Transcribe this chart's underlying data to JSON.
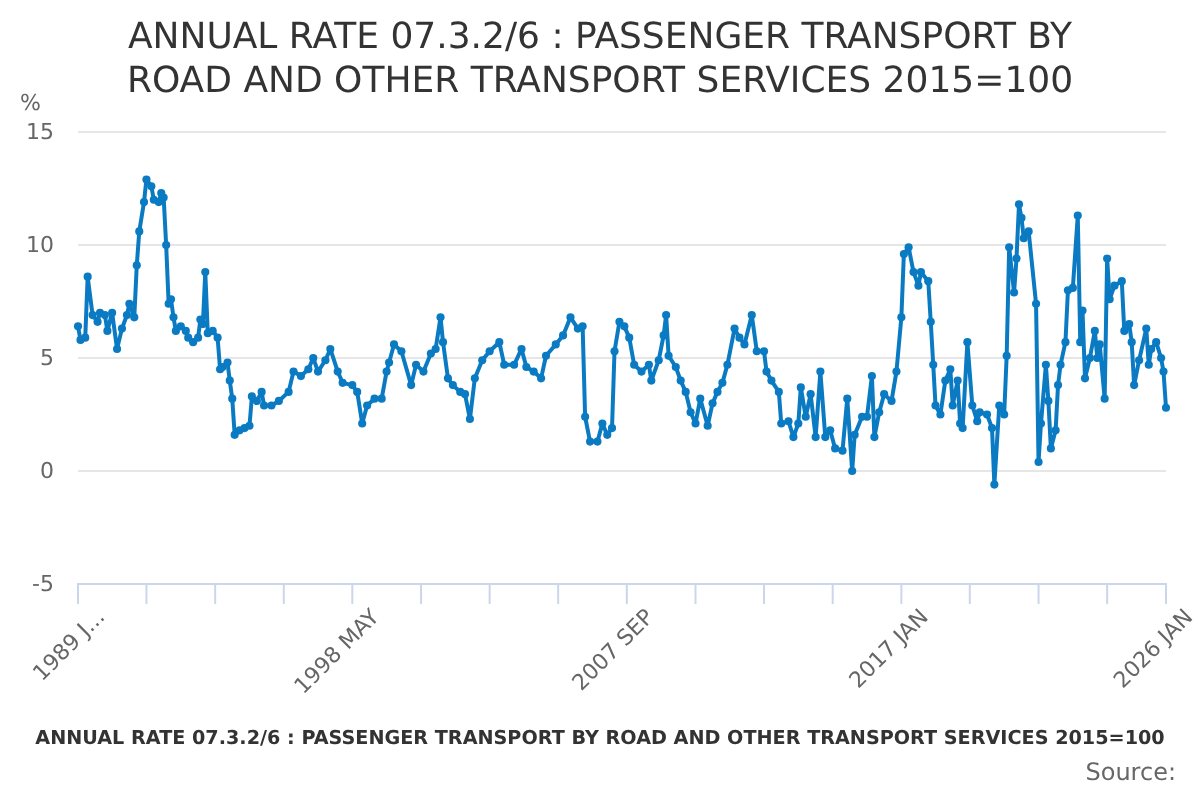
{
  "chart_data": {
    "type": "line",
    "title": "ANNUAL RATE 07.3.2/6 : PASSENGER TRANSPORT BY ROAD AND OTHER TRANSPORT SERVICES 2015=100",
    "ylabel": "%",
    "annotations": [
      "ANNUAL RATE 07.3.2/6 : PASSENGER TRANSPORT BY ROAD AND OTHER TRANSPORT SERVICES 2015=100",
      "Source:"
    ],
    "ylim": [
      -5,
      15
    ],
    "yticks": [
      -5,
      0,
      5,
      10,
      15
    ],
    "xlim": [
      "1989-01",
      "2026-01"
    ],
    "xticks": [
      {
        "value": "1989-01",
        "label": "1989 J..."
      },
      {
        "value": "1991-05",
        "label": null
      },
      {
        "value": "1993-09",
        "label": null
      },
      {
        "value": "1996-01",
        "label": null
      },
      {
        "value": "1998-05",
        "label": "1998 MAY"
      },
      {
        "value": "2000-09",
        "label": null
      },
      {
        "value": "2003-01",
        "label": null
      },
      {
        "value": "2005-05",
        "label": null
      },
      {
        "value": "2007-09",
        "label": "2007 SEP"
      },
      {
        "value": "2010-01",
        "label": null
      },
      {
        "value": "2012-05",
        "label": null
      },
      {
        "value": "2014-09",
        "label": null
      },
      {
        "value": "2017-01",
        "label": "2017 JAN"
      },
      {
        "value": "2019-05",
        "label": null
      },
      {
        "value": "2021-09",
        "label": null
      },
      {
        "value": "2024-01",
        "label": null
      },
      {
        "value": "2026-01",
        "label": "2026 JAN"
      }
    ],
    "grid": "y",
    "marker": "circle",
    "line_style": "solid",
    "series": [
      {
        "color": "#0a7bc2",
        "x": [
          "1989-01",
          "1989-02",
          "1989-04",
          "1989-05",
          "1989-07",
          "1989-09",
          "1989-10",
          "1989-12",
          "1990-01",
          "1990-03",
          "1990-05",
          "1990-07",
          "1990-09",
          "1990-10",
          "1990-12",
          "1991-01",
          "1991-02",
          "1991-04",
          "1991-05",
          "1991-07",
          "1991-08",
          "1991-10",
          "1991-11",
          "1991-12",
          "1992-01",
          "1992-02",
          "1992-03",
          "1992-04",
          "1992-05",
          "1992-07",
          "1992-09",
          "1992-10",
          "1992-12",
          "1993-02",
          "1993-03",
          "1993-04",
          "1993-05",
          "1993-06",
          "1993-08",
          "1993-10",
          "1993-11",
          "1993-12",
          "1994-02",
          "1994-03",
          "1994-04",
          "1994-05",
          "1994-07",
          "1994-09",
          "1994-11",
          "1994-12",
          "1995-02",
          "1995-04",
          "1995-05",
          "1995-08",
          "1995-11",
          "1996-03",
          "1996-05",
          "1996-08",
          "1996-11",
          "1997-01",
          "1997-03",
          "1997-06",
          "1997-08",
          "1997-11",
          "1998-01",
          "1998-05",
          "1998-07",
          "1998-09",
          "1998-11",
          "1999-02",
          "1999-05",
          "1999-07",
          "1999-08",
          "1999-10",
          "2000-01",
          "2000-05",
          "2000-07",
          "2000-10",
          "2001-01",
          "2001-03",
          "2001-05",
          "2001-06",
          "2001-08",
          "2001-10",
          "2002-01",
          "2002-03",
          "2002-05",
          "2002-07",
          "2002-10",
          "2003-01",
          "2003-05",
          "2003-07",
          "2003-11",
          "2004-02",
          "2004-04",
          "2004-07",
          "2004-10",
          "2004-12",
          "2005-04",
          "2005-07",
          "2005-10",
          "2006-01",
          "2006-03",
          "2006-04",
          "2006-06",
          "2006-09",
          "2006-11",
          "2007-01",
          "2007-03",
          "2007-04",
          "2007-06",
          "2007-08",
          "2007-10",
          "2007-12",
          "2008-03",
          "2008-06",
          "2008-07",
          "2008-10",
          "2008-12",
          "2009-01",
          "2009-02",
          "2009-05",
          "2009-07",
          "2009-09",
          "2009-11",
          "2010-01",
          "2010-03",
          "2010-06",
          "2010-08",
          "2010-10",
          "2010-12",
          "2011-02",
          "2011-05",
          "2011-07",
          "2011-09",
          "2011-12",
          "2012-02",
          "2012-05",
          "2012-06",
          "2012-08",
          "2012-11",
          "2012-12",
          "2013-03",
          "2013-05",
          "2013-07",
          "2013-08",
          "2013-10",
          "2013-12",
          "2014-02",
          "2014-04",
          "2014-06",
          "2014-08",
          "2014-10",
          "2015-01",
          "2015-03",
          "2015-05",
          "2015-06",
          "2015-09",
          "2015-11",
          "2016-01",
          "2016-02",
          "2016-04",
          "2016-06",
          "2016-09",
          "2016-11",
          "2017-01",
          "2017-02",
          "2017-04",
          "2017-06",
          "2017-08",
          "2017-09",
          "2017-12",
          "2018-01",
          "2018-02",
          "2018-03",
          "2018-05",
          "2018-07",
          "2018-09",
          "2018-10",
          "2018-12",
          "2019-01",
          "2019-02",
          "2019-04",
          "2019-06",
          "2019-08",
          "2019-09",
          "2019-12",
          "2020-02",
          "2020-03",
          "2020-05",
          "2020-07",
          "2020-08",
          "2020-09",
          "2020-11",
          "2020-12",
          "2021-01",
          "2021-02",
          "2021-03",
          "2021-05",
          "2021-08",
          "2021-09",
          "2021-10",
          "2021-12",
          "2022-01",
          "2022-02",
          "2022-04",
          "2022-05",
          "2022-06",
          "2022-08",
          "2022-09",
          "2022-11",
          "2023-01",
          "2023-02",
          "2023-03",
          "2023-04",
          "2023-06",
          "2023-08",
          "2023-09",
          "2023-10",
          "2023-12",
          "2024-01",
          "2024-02",
          "2024-04",
          "2024-07",
          "2024-08",
          "2024-10",
          "2024-11",
          "2024-12",
          "2025-02",
          "2025-05",
          "2025-06",
          "2025-07",
          "2025-09",
          "2025-11",
          "2025-12",
          "2026-01"
        ],
        "values": [
          6.4,
          5.8,
          5.9,
          8.6,
          6.9,
          6.6,
          7.0,
          6.9,
          6.2,
          7.0,
          5.4,
          6.3,
          6.9,
          7.4,
          6.8,
          9.1,
          10.6,
          11.9,
          12.9,
          12.6,
          12.0,
          11.9,
          12.3,
          12.1,
          10.0,
          7.4,
          7.6,
          6.8,
          6.2,
          6.4,
          6.2,
          5.9,
          5.7,
          5.9,
          6.7,
          6.5,
          8.8,
          6.1,
          6.2,
          5.9,
          4.5,
          4.6,
          4.8,
          4.0,
          3.2,
          1.6,
          1.8,
          1.9,
          2.0,
          3.3,
          3.1,
          3.5,
          2.9,
          2.9,
          3.1,
          3.5,
          4.4,
          4.2,
          4.5,
          5.0,
          4.4,
          4.9,
          5.4,
          4.4,
          3.9,
          3.8,
          3.5,
          2.1,
          2.9,
          3.2,
          3.2,
          4.4,
          4.8,
          5.6,
          5.3,
          3.8,
          4.7,
          4.4,
          5.2,
          5.4,
          6.8,
          5.7,
          4.1,
          3.8,
          3.5,
          3.4,
          2.3,
          4.1,
          4.9,
          5.3,
          5.7,
          4.7,
          4.7,
          5.4,
          4.6,
          4.4,
          4.1,
          5.1,
          5.6,
          6.0,
          6.8,
          6.3,
          6.4,
          2.4,
          1.3,
          1.3,
          2.1,
          1.6,
          1.9,
          5.3,
          6.6,
          6.4,
          5.9,
          4.7,
          4.4,
          4.7,
          4.0,
          4.9,
          6.0,
          6.9,
          5.1,
          4.6,
          4.0,
          3.5,
          2.6,
          2.1,
          3.2,
          2.0,
          3.0,
          3.5,
          3.9,
          4.7,
          6.3,
          5.9,
          5.6,
          6.9,
          5.3,
          5.3,
          4.4,
          4.0,
          3.5,
          2.1,
          2.2,
          1.5,
          2.1,
          3.7,
          2.4,
          3.4,
          1.5,
          4.4,
          1.5,
          1.8,
          1.0,
          0.9,
          3.2,
          0.0,
          1.6,
          2.4,
          2.4,
          4.2,
          1.5,
          2.6,
          3.4,
          3.1,
          4.4,
          6.8,
          9.6,
          9.9,
          8.8,
          8.2,
          8.8,
          8.4,
          6.6,
          4.7,
          2.9,
          2.5,
          4.0,
          4.5,
          2.9,
          4.0,
          2.1,
          1.9,
          5.7,
          2.9,
          2.2,
          2.6,
          2.5,
          1.9,
          -0.6,
          2.9,
          2.5,
          5.1,
          9.9,
          7.9,
          9.4,
          11.8,
          11.2,
          10.3,
          10.6,
          7.4,
          0.4,
          2.1,
          4.7,
          3.1,
          1.0,
          1.8,
          3.8,
          4.7,
          5.7,
          8.0,
          8.1,
          11.3,
          5.7,
          7.1,
          4.1,
          5.0,
          6.2,
          5.0,
          5.6,
          3.2,
          9.4,
          7.6,
          8.2,
          8.4,
          6.2,
          6.5,
          5.7,
          3.8,
          4.9,
          6.3,
          4.7,
          5.4,
          5.7,
          5.0,
          4.4,
          2.8
        ]
      }
    ]
  }
}
